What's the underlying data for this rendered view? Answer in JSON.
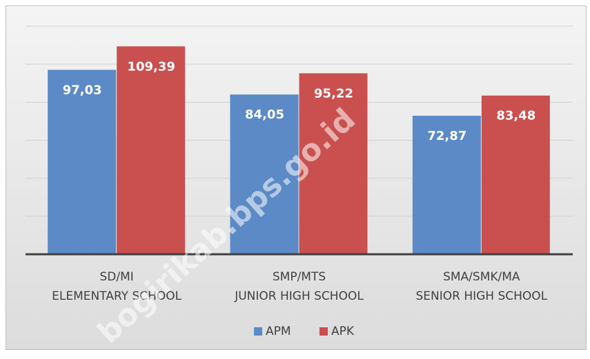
{
  "chart_data": {
    "type": "bar",
    "categories": [
      "SD/MI\nELEMENTARY SCHOOL",
      "SMP/MTS\nJUNIOR HIGH SCHOOL",
      "SMA/SMK/MA\nSENIOR HIGH SCHOOL"
    ],
    "series": [
      {
        "name": "APM",
        "color": "#5b8ac6",
        "values": [
          97.03,
          84.05,
          72.87
        ],
        "value_labels": [
          "97,03",
          "84,05",
          "72,87"
        ]
      },
      {
        "name": "APK",
        "color": "#c9504f",
        "values": [
          109.39,
          95.22,
          83.48
        ],
        "value_labels": [
          "109,39",
          "95,22",
          "83,48"
        ]
      }
    ],
    "ylim": [
      0,
      120
    ],
    "yticks": [
      0,
      20,
      40,
      60,
      80,
      100,
      120
    ],
    "grid": true,
    "legend": "bottom",
    "watermark": "bogirikab.bps.go.id"
  }
}
